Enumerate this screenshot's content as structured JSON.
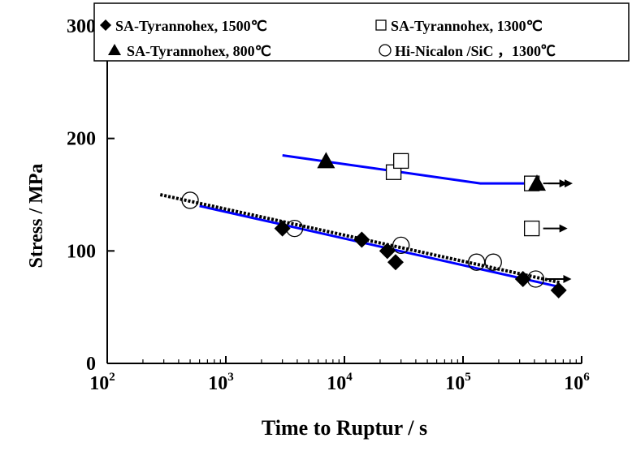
{
  "chart_data": {
    "type": "scatter",
    "xscale": "log",
    "xlim": [
      100,
      1000000
    ],
    "ylim": [
      0,
      300
    ],
    "ylabel": "Stress / MPa",
    "xlabel": "Time to Ruptur / s",
    "x_ticks": [
      {
        "base": "10",
        "exp": "2",
        "value": 100
      },
      {
        "base": "10",
        "exp": "3",
        "value": 1000
      },
      {
        "base": "10",
        "exp": "4",
        "value": 10000
      },
      {
        "base": "10",
        "exp": "5",
        "value": 100000
      },
      {
        "base": "10",
        "exp": "6",
        "value": 1000000
      }
    ],
    "y_ticks": [
      {
        "label": "0",
        "value": 0
      },
      {
        "label": "100",
        "value": 100
      },
      {
        "label": "200",
        "value": 200
      },
      {
        "label": "300",
        "value": 300
      }
    ],
    "grid": false,
    "legend_position": "top",
    "series": [
      {
        "name": "SA-Tyrannohex, 1500℃",
        "marker": "filled-diamond",
        "color": "#000000",
        "points": [
          {
            "x": 3000,
            "y": 120
          },
          {
            "x": 14000,
            "y": 110
          },
          {
            "x": 23000,
            "y": 100
          },
          {
            "x": 27000,
            "y": 90
          },
          {
            "x": 320000,
            "y": 75
          },
          {
            "x": 640000,
            "y": 65
          }
        ]
      },
      {
        "name": "SA-Tyrannohex, 1300℃",
        "marker": "open-square",
        "color": "#000000",
        "points": [
          {
            "x": 26000,
            "y": 170
          },
          {
            "x": 30000,
            "y": 180
          },
          {
            "x": 380000,
            "y": 160,
            "runout": true
          },
          {
            "x": 380000,
            "y": 120,
            "runout": true
          }
        ]
      },
      {
        "name": "SA-Tyrannohex, 800℃",
        "marker": "filled-triangle",
        "color": "#000000",
        "points": [
          {
            "x": 7000,
            "y": 180
          },
          {
            "x": 420000,
            "y": 160,
            "runout": true
          }
        ]
      },
      {
        "name": "Hi-Nicalon /SiC ，1300℃",
        "marker": "open-circle",
        "color": "#000000",
        "points": [
          {
            "x": 500,
            "y": 145
          },
          {
            "x": 3800,
            "y": 120
          },
          {
            "x": 30000,
            "y": 105
          },
          {
            "x": 130000,
            "y": 90
          },
          {
            "x": 180000,
            "y": 90
          },
          {
            "x": 410000,
            "y": 75,
            "runout": true
          }
        ]
      }
    ],
    "fit_lines": [
      {
        "style": "solid",
        "color": "#0000ff",
        "points": [
          {
            "x": 3000,
            "y": 185
          },
          {
            "x": 140000,
            "y": 160
          },
          {
            "x": 420000,
            "y": 160
          }
        ]
      },
      {
        "style": "solid",
        "color": "#0000ff",
        "points": [
          {
            "x": 600,
            "y": 140
          },
          {
            "x": 650000,
            "y": 68
          }
        ]
      },
      {
        "style": "dotted",
        "color": "#000000",
        "points": [
          {
            "x": 280,
            "y": 150
          },
          {
            "x": 650000,
            "y": 72
          }
        ]
      }
    ]
  }
}
